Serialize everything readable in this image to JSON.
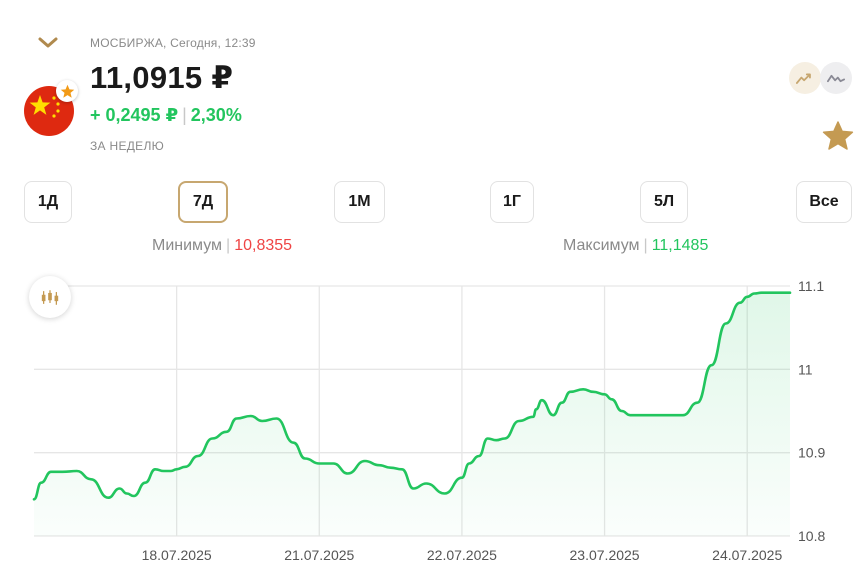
{
  "header": {
    "source": "МОСБИРЖА, Сегодня, 12:39",
    "price": "11,0915 ₽",
    "change_abs": "+ 0,2495 ₽",
    "change_pct": "2,30%",
    "period_label": "ЗА НЕДЕЛЮ"
  },
  "icons": {
    "collapse": "chevron-down-icon",
    "flag": "china-flag-icon",
    "favorite_badge": "star-icon",
    "chart_mode_a": "line-chart-icon",
    "chart_mode_b": "line-chart-icon",
    "favorite": "star-icon",
    "candles": "candlestick-icon"
  },
  "colors": {
    "accent": "#c7a770",
    "positive": "#22c55e",
    "negative": "#ef4444",
    "star": "#c49a52",
    "flag_red": "#de2910",
    "flag_yellow": "#ffde00"
  },
  "periods": [
    {
      "label": "1Д",
      "active": false
    },
    {
      "label": "7Д",
      "active": true
    },
    {
      "label": "1М",
      "active": false
    },
    {
      "label": "1Г",
      "active": false
    },
    {
      "label": "5Л",
      "active": false
    },
    {
      "label": "Все",
      "active": false
    }
  ],
  "stats": {
    "min_label": "Минимум",
    "min_value": "10,8355",
    "max_label": "Максимум",
    "max_value": "11,1485"
  },
  "chart_data": {
    "type": "area",
    "title": "",
    "xlabel": "",
    "ylabel": "",
    "ylim": [
      10.8,
      11.1
    ],
    "y_ticks": [
      10.8,
      10.9,
      11,
      11.1
    ],
    "y_tick_labels": [
      "10.8",
      "10.9",
      "11",
      "11.1"
    ],
    "x_ticks": [
      1,
      2,
      3,
      4,
      5
    ],
    "x_tick_labels": [
      "18.07.2025",
      "21.07.2025",
      "22.07.2025",
      "23.07.2025",
      "24.07.2025"
    ],
    "xlim": [
      0,
      5.3
    ],
    "grid": true,
    "series": [
      {
        "x": [
          0,
          0.05,
          0.12,
          0.2,
          0.3,
          0.4,
          0.52,
          0.6,
          0.65,
          0.7,
          0.78,
          0.85,
          0.91,
          0.96,
          1.0,
          1.06,
          1.15,
          1.25,
          1.35,
          1.42,
          1.52,
          1.6,
          1.7,
          1.82,
          1.9,
          2.0,
          2.1,
          2.2,
          2.32,
          2.42,
          2.5,
          2.58,
          2.66,
          2.75,
          2.88,
          3.0,
          3.05,
          3.12,
          3.18,
          3.24,
          3.3,
          3.4,
          3.5,
          3.52,
          3.56,
          3.64,
          3.7,
          3.76,
          3.85,
          3.92,
          4.0,
          4.05,
          4.12,
          4.18,
          4.25,
          4.35,
          4.45,
          4.55,
          4.65,
          4.75,
          4.85,
          4.95,
          5.0,
          5.05,
          5.1,
          5.15,
          5.2,
          5.25,
          5.3
        ],
        "y": [
          10.844,
          10.864,
          10.877,
          10.877,
          10.878,
          10.868,
          10.846,
          10.857,
          10.851,
          10.848,
          10.864,
          10.88,
          10.878,
          10.878,
          10.88,
          10.883,
          10.896,
          10.917,
          10.925,
          10.941,
          10.944,
          10.938,
          10.941,
          10.912,
          10.893,
          10.887,
          10.887,
          10.875,
          10.89,
          10.885,
          10.882,
          10.88,
          10.857,
          10.863,
          10.851,
          10.87,
          10.887,
          10.896,
          10.917,
          10.915,
          10.917,
          10.938,
          10.943,
          10.952,
          10.963,
          10.945,
          10.96,
          10.973,
          10.976,
          10.973,
          10.97,
          10.964,
          10.95,
          10.945,
          10.945,
          10.945,
          10.945,
          10.945,
          10.96,
          11.005,
          11.055,
          11.08,
          11.087,
          11.091,
          11.092,
          11.092,
          11.092,
          11.092,
          11.092
        ]
      }
    ]
  }
}
